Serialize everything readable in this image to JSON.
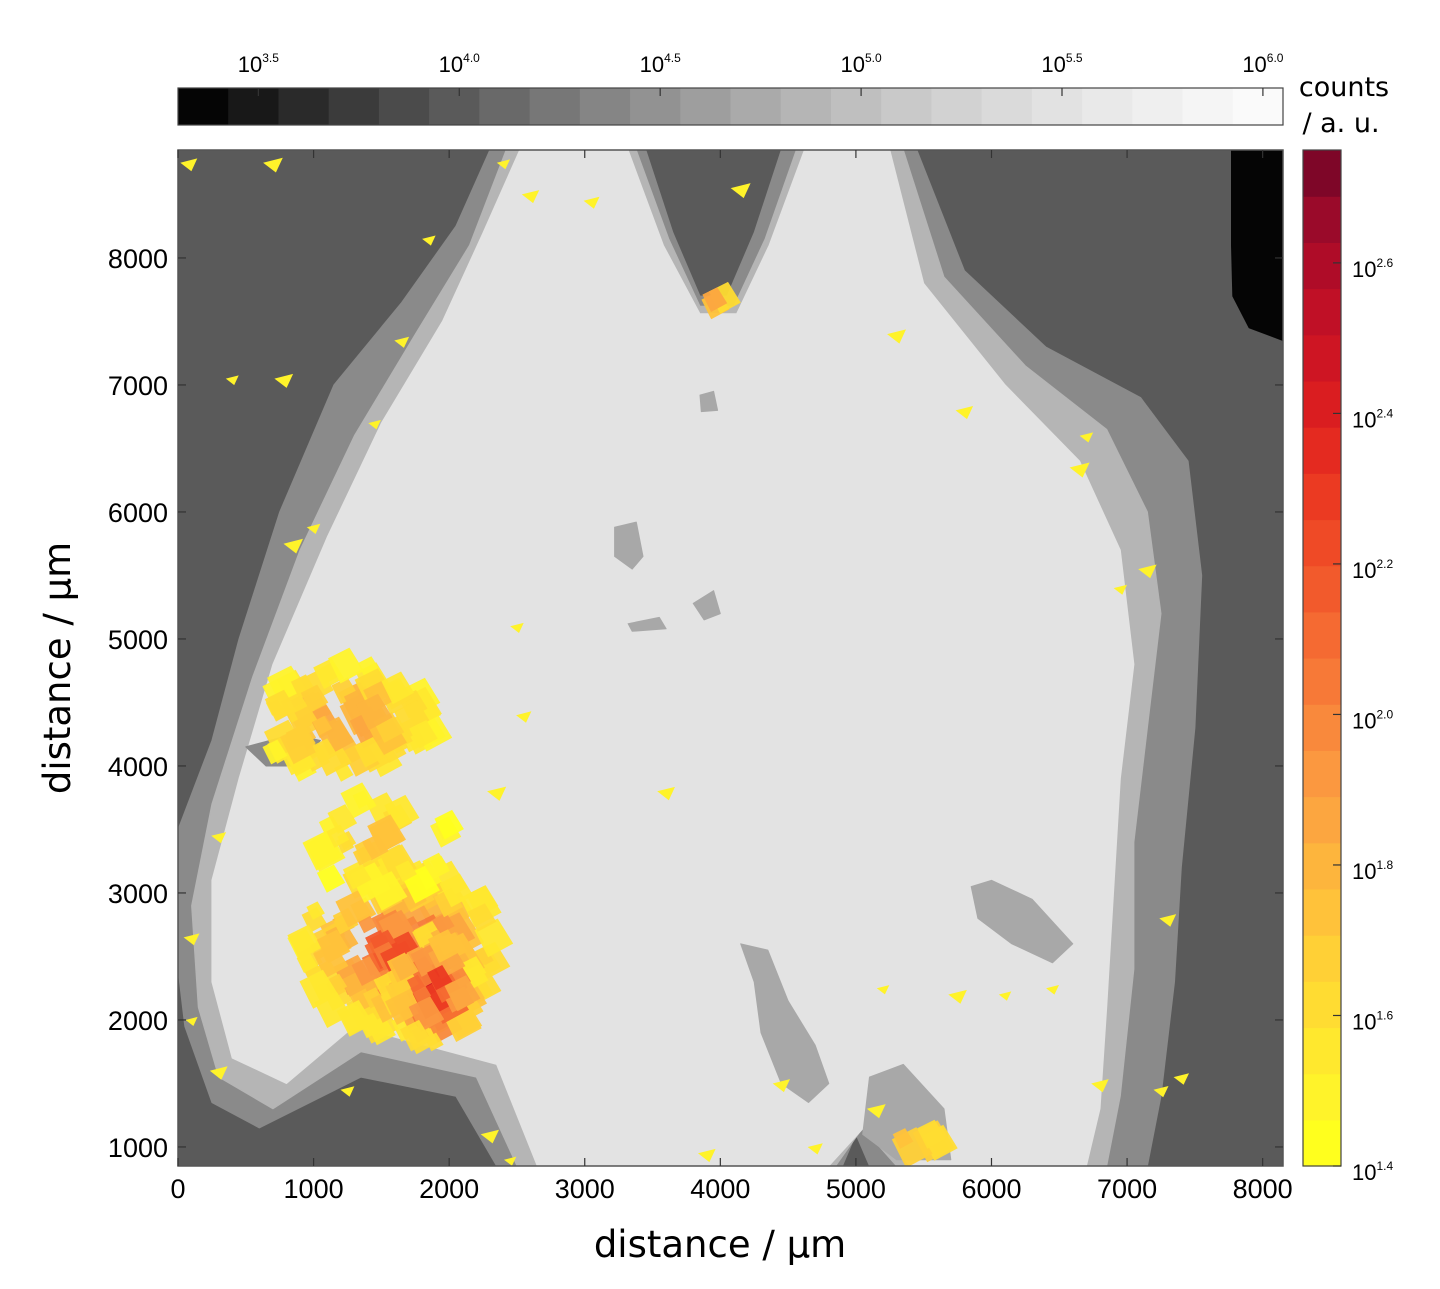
{
  "chart_data": {
    "type": "heatmap",
    "xlabel": "distance / µm",
    "ylabel": "distance / µm",
    "xlim": [
      0,
      8150
    ],
    "ylim": [
      850,
      8850
    ],
    "x_ticks": [
      0,
      1000,
      2000,
      3000,
      4000,
      5000,
      6000,
      7000,
      8000
    ],
    "y_ticks": [
      1000,
      2000,
      3000,
      4000,
      5000,
      6000,
      7000,
      8000
    ],
    "gray_colorbar": {
      "label_line1": "counts",
      "label_line2": "/ a. u.",
      "scale": "log10",
      "range_exp": [
        3.3,
        6.05
      ],
      "ticks": [
        {
          "exp": 3.5,
          "base": "10",
          "sup": "3.5"
        },
        {
          "exp": 4.0,
          "base": "10",
          "sup": "4.0"
        },
        {
          "exp": 4.5,
          "base": "10",
          "sup": "4.5"
        },
        {
          "exp": 5.0,
          "base": "10",
          "sup": "5.0"
        },
        {
          "exp": 5.5,
          "base": "10",
          "sup": "5.5"
        },
        {
          "exp": 6.0,
          "base": "10",
          "sup": "6.0"
        }
      ],
      "colors": [
        "#050505",
        "#181818",
        "#2a2a2a",
        "#3b3b3b",
        "#4b4b4b",
        "#5a5a5a",
        "#696969",
        "#777777",
        "#858585",
        "#929292",
        "#9e9e9e",
        "#aaaaaa",
        "#b5b5b5",
        "#bfbfbf",
        "#c9c9c9",
        "#d2d2d2",
        "#dadada",
        "#e2e2e2",
        "#e9e9e9",
        "#efefef",
        "#f5f5f5",
        "#fafafa"
      ]
    },
    "red_colorbar": {
      "scale": "log10",
      "range_exp": [
        1.4,
        2.75
      ],
      "ticks": [
        {
          "exp": 1.4,
          "base": "10",
          "sup": "1.4"
        },
        {
          "exp": 1.6,
          "base": "10",
          "sup": "1.6"
        },
        {
          "exp": 1.8,
          "base": "10",
          "sup": "1.8"
        },
        {
          "exp": 2.0,
          "base": "10",
          "sup": "2.0"
        },
        {
          "exp": 2.2,
          "base": "10",
          "sup": "2.2"
        },
        {
          "exp": 2.4,
          "base": "10",
          "sup": "2.4"
        },
        {
          "exp": 2.6,
          "base": "10",
          "sup": "2.6"
        }
      ],
      "colors": [
        "#ffff1e",
        "#fff32a",
        "#ffe82e",
        "#ffdc32",
        "#ffd036",
        "#ffc23a",
        "#fdb53d",
        "#fca640",
        "#fb9840",
        "#f9893c",
        "#f77937",
        "#f56a32",
        "#f25a2c",
        "#ef4a26",
        "#eb3a22",
        "#e42a20",
        "#da1d20",
        "#ce1523",
        "#c01026",
        "#af0c28",
        "#9a0a2a",
        "#7e0628"
      ]
    },
    "gray_regions": [
      {
        "level": "outer_dark",
        "color": "#5a5a5a",
        "points": [
          [
            0,
            850
          ],
          [
            8150,
            850
          ],
          [
            8150,
            8850
          ],
          [
            0,
            8850
          ]
        ]
      },
      {
        "level": "black_corner",
        "color": "#050505",
        "points": [
          [
            7770,
            8850
          ],
          [
            8150,
            8850
          ],
          [
            8150,
            7350
          ],
          [
            7900,
            7450
          ],
          [
            7780,
            7700
          ],
          [
            7770,
            8100
          ]
        ]
      },
      {
        "level": "mid_gray",
        "color": "#8a8a8a",
        "points": [
          [
            2300,
            8850
          ],
          [
            3450,
            8850
          ],
          [
            3650,
            8200
          ],
          [
            3850,
            7700
          ],
          [
            4050,
            7700
          ],
          [
            4250,
            8200
          ],
          [
            4450,
            8850
          ],
          [
            5450,
            8850
          ],
          [
            5800,
            7900
          ],
          [
            6400,
            7300
          ],
          [
            7100,
            6900
          ],
          [
            7450,
            6400
          ],
          [
            7550,
            5500
          ],
          [
            7500,
            4300
          ],
          [
            7400,
            3200
          ],
          [
            7350,
            2300
          ],
          [
            7250,
            1400
          ],
          [
            7150,
            850
          ],
          [
            5100,
            850
          ],
          [
            5000,
            1100
          ],
          [
            4900,
            850
          ],
          [
            2350,
            850
          ],
          [
            2050,
            1400
          ],
          [
            1350,
            1550
          ],
          [
            600,
            1150
          ],
          [
            250,
            1350
          ],
          [
            50,
            1950
          ],
          [
            0,
            2400
          ],
          [
            0,
            3500
          ],
          [
            250,
            4200
          ],
          [
            450,
            5000
          ],
          [
            750,
            6000
          ],
          [
            1150,
            7000
          ],
          [
            1650,
            7650
          ],
          [
            2050,
            8250
          ]
        ]
      },
      {
        "level": "light_gray_mid",
        "color": "#b5b5b5",
        "points": [
          [
            2420,
            8850
          ],
          [
            3380,
            8850
          ],
          [
            3620,
            8150
          ],
          [
            3850,
            7620
          ],
          [
            4100,
            7620
          ],
          [
            4330,
            8150
          ],
          [
            4560,
            8850
          ],
          [
            5350,
            8850
          ],
          [
            5650,
            7850
          ],
          [
            6250,
            7150
          ],
          [
            6850,
            6650
          ],
          [
            7150,
            6000
          ],
          [
            7250,
            5200
          ],
          [
            7150,
            4300
          ],
          [
            7050,
            3400
          ],
          [
            7050,
            2400
          ],
          [
            6950,
            1400
          ],
          [
            6850,
            850
          ],
          [
            5300,
            850
          ],
          [
            5050,
            1150
          ],
          [
            4850,
            850
          ],
          [
            2500,
            850
          ],
          [
            2200,
            1550
          ],
          [
            1350,
            1750
          ],
          [
            700,
            1300
          ],
          [
            300,
            1550
          ],
          [
            150,
            2100
          ],
          [
            100,
            2900
          ],
          [
            250,
            3700
          ],
          [
            550,
            4700
          ],
          [
            900,
            5700
          ],
          [
            1300,
            6600
          ],
          [
            1750,
            7400
          ],
          [
            2150,
            8100
          ]
        ]
      },
      {
        "level": "lightest",
        "color": "#e3e3e3",
        "points": [
          [
            2520,
            8850
          ],
          [
            3320,
            8850
          ],
          [
            3580,
            8100
          ],
          [
            3850,
            7560
          ],
          [
            4120,
            7560
          ],
          [
            4360,
            8100
          ],
          [
            4620,
            8850
          ],
          [
            5250,
            8850
          ],
          [
            5500,
            7800
          ],
          [
            6100,
            7000
          ],
          [
            6650,
            6400
          ],
          [
            6950,
            5700
          ],
          [
            7050,
            4800
          ],
          [
            6950,
            3900
          ],
          [
            6900,
            3000
          ],
          [
            6850,
            2100
          ],
          [
            6800,
            1300
          ],
          [
            6700,
            850
          ],
          [
            5400,
            850
          ],
          [
            5100,
            1200
          ],
          [
            4800,
            850
          ],
          [
            2650,
            850
          ],
          [
            2350,
            1650
          ],
          [
            1300,
            1950
          ],
          [
            800,
            1500
          ],
          [
            400,
            1700
          ],
          [
            250,
            2300
          ],
          [
            250,
            3100
          ],
          [
            450,
            3900
          ],
          [
            700,
            4800
          ],
          [
            1100,
            5800
          ],
          [
            1500,
            6700
          ],
          [
            1950,
            7500
          ],
          [
            2250,
            8200
          ]
        ]
      },
      {
        "level": "patch_center",
        "color": "#a8a8a8",
        "points": [
          [
            3220,
            5880
          ],
          [
            3380,
            5920
          ],
          [
            3430,
            5650
          ],
          [
            3350,
            5550
          ],
          [
            3220,
            5650
          ]
        ]
      },
      {
        "level": "patch_small",
        "color": "#a8a8a8",
        "points": [
          [
            3800,
            5280
          ],
          [
            3950,
            5380
          ],
          [
            4000,
            5200
          ],
          [
            3880,
            5150
          ]
        ]
      },
      {
        "level": "patch_small",
        "color": "#a8a8a8",
        "points": [
          [
            3320,
            5120
          ],
          [
            3550,
            5170
          ],
          [
            3600,
            5080
          ],
          [
            3350,
            5060
          ]
        ]
      },
      {
        "level": "patch_small",
        "color": "#a8a8a8",
        "points": [
          [
            3850,
            6920
          ],
          [
            3950,
            6950
          ],
          [
            3980,
            6800
          ],
          [
            3860,
            6790
          ]
        ]
      },
      {
        "level": "patch_lower",
        "color": "#a8a8a8",
        "points": [
          [
            4150,
            2600
          ],
          [
            4350,
            2550
          ],
          [
            4500,
            2150
          ],
          [
            4700,
            1800
          ],
          [
            4800,
            1500
          ],
          [
            4650,
            1350
          ],
          [
            4450,
            1500
          ],
          [
            4300,
            1900
          ],
          [
            4250,
            2300
          ]
        ]
      },
      {
        "level": "patch_right",
        "color": "#a8a8a8",
        "points": [
          [
            5850,
            3050
          ],
          [
            6000,
            3100
          ],
          [
            6300,
            2950
          ],
          [
            6600,
            2600
          ],
          [
            6450,
            2450
          ],
          [
            6150,
            2600
          ],
          [
            5900,
            2800
          ]
        ]
      },
      {
        "level": "patch_left",
        "color": "#8a8a8a",
        "points": [
          [
            500,
            4150
          ],
          [
            850,
            4250
          ],
          [
            1050,
            4200
          ],
          [
            900,
            4000
          ],
          [
            650,
            4000
          ]
        ]
      },
      {
        "level": "patch_lowerc",
        "color": "#a8a8a8",
        "points": [
          [
            5100,
            1550
          ],
          [
            5350,
            1650
          ],
          [
            5650,
            1300
          ],
          [
            5700,
            900
          ],
          [
            5300,
            900
          ],
          [
            5050,
            1100
          ]
        ]
      }
    ],
    "hot_clusters": [
      {
        "cx": 1650,
        "cy": 2550,
        "rx": 750,
        "ry": 650,
        "peak_exp": 2.35,
        "n": 140
      },
      {
        "cx": 1900,
        "cy": 2250,
        "rx": 320,
        "ry": 450,
        "peak_exp": 2.65,
        "n": 70
      },
      {
        "cx": 1250,
        "cy": 4350,
        "rx": 650,
        "ry": 450,
        "peak_exp": 2.05,
        "n": 80
      },
      {
        "cx": 1500,
        "cy": 3400,
        "rx": 550,
        "ry": 400,
        "peak_exp": 1.8,
        "n": 35
      },
      {
        "cx": 5450,
        "cy": 1050,
        "rx": 200,
        "ry": 100,
        "peak_exp": 2.1,
        "n": 6
      },
      {
        "cx": 3980,
        "cy": 7660,
        "rx": 80,
        "ry": 60,
        "peak_exp": 2.2,
        "n": 3
      }
    ],
    "hot_specks": [
      [
        80,
        8750
      ],
      [
        700,
        8750
      ],
      [
        1850,
        8150
      ],
      [
        2400,
        8750
      ],
      [
        2600,
        8500
      ],
      [
        3050,
        8450
      ],
      [
        4150,
        8550
      ],
      [
        1650,
        7350
      ],
      [
        400,
        7050
      ],
      [
        780,
        7050
      ],
      [
        1450,
        6700
      ],
      [
        1000,
        5880
      ],
      [
        850,
        5750
      ],
      [
        2500,
        5100
      ],
      [
        2550,
        4400
      ],
      [
        2350,
        3800
      ],
      [
        3600,
        3800
      ],
      [
        5200,
        2250
      ],
      [
        5750,
        2200
      ],
      [
        6100,
        2200
      ],
      [
        6450,
        2250
      ],
      [
        7300,
        2800
      ],
      [
        6800,
        1500
      ],
      [
        7250,
        1450
      ],
      [
        7400,
        1550
      ],
      [
        6700,
        6600
      ],
      [
        6650,
        6350
      ],
      [
        6950,
        5400
      ],
      [
        7150,
        5550
      ],
      [
        5800,
        6800
      ],
      [
        5300,
        7400
      ],
      [
        300,
        3450
      ],
      [
        100,
        2650
      ],
      [
        100,
        2000
      ],
      [
        300,
        1600
      ],
      [
        1250,
        1450
      ],
      [
        2300,
        1100
      ],
      [
        2450,
        900
      ],
      [
        3900,
        950
      ],
      [
        4450,
        1500
      ],
      [
        5150,
        1300
      ],
      [
        4700,
        1000
      ]
    ]
  }
}
